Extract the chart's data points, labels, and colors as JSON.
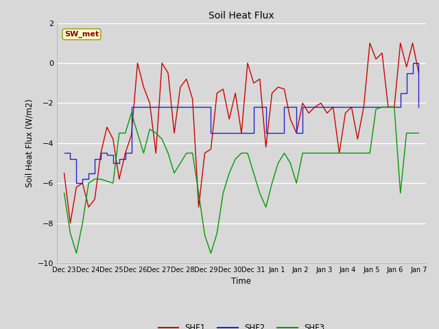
{
  "title": "Soil Heat Flux",
  "xlabel": "Time",
  "ylabel": "Soil Heat Flux (W/m2)",
  "ylim": [
    -10,
    2
  ],
  "yticks": [
    -10,
    -8,
    -6,
    -4,
    -2,
    0,
    2
  ],
  "bg_color": "#d8d8d8",
  "plot_bg_color": "#d8d8d8",
  "annotation_text": "SW_met",
  "annotation_bg": "#ffffcc",
  "annotation_fg": "#880000",
  "colors": {
    "SHF1": "#cc0000",
    "SHF2": "#2222cc",
    "SHF3": "#009900"
  },
  "x_labels": [
    "Dec 23",
    "Dec 24",
    "Dec 25",
    "Dec 26",
    "Dec 27",
    "Dec 28",
    "Dec 29",
    "Dec 30",
    "Dec 31",
    "Jan 1",
    "Jan 2",
    "Jan 3",
    "Jan 4",
    "Jan 5",
    "Jan 6",
    "Jan 7"
  ],
  "SHF1": [
    -5.5,
    -8.0,
    -6.2,
    -6.0,
    -7.2,
    -6.8,
    -4.5,
    -3.2,
    -3.8,
    -5.8,
    -4.5,
    -3.6,
    0.0,
    -1.2,
    -2.0,
    -4.5,
    0.0,
    -0.5,
    -3.5,
    -1.2,
    -0.8,
    -1.8,
    -7.2,
    -4.5,
    -4.3,
    -1.5,
    -1.3,
    -2.8,
    -1.5,
    -3.5,
    0.0,
    -1.0,
    -0.8,
    -4.2,
    -1.5,
    -1.2,
    -1.3,
    -2.8,
    -3.5,
    -2.0,
    -2.5,
    -2.2,
    -2.0,
    -2.5,
    -2.2,
    -4.5,
    -2.5,
    -2.2,
    -3.8,
    -2.2,
    1.0,
    0.2,
    0.5,
    -2.2,
    -2.2,
    1.0,
    -0.2,
    1.0,
    -0.5
  ],
  "SHF2": [
    -4.5,
    -4.8,
    -6.0,
    -5.8,
    -5.5,
    -4.8,
    -4.5,
    -4.6,
    -5.0,
    -4.8,
    -4.5,
    -2.2,
    -2.2,
    -2.2,
    -2.2,
    -2.2,
    -2.2,
    -2.2,
    -2.2,
    -2.2,
    -2.2,
    -2.2,
    -2.2,
    -2.2,
    -3.5,
    -3.5,
    -3.5,
    -3.5,
    -3.5,
    -3.5,
    -3.5,
    -2.2,
    -2.2,
    -3.5,
    -3.5,
    -3.5,
    -2.2,
    -2.2,
    -3.5,
    -2.2,
    -2.2,
    -2.2,
    -2.2,
    -2.2,
    -2.2,
    -2.2,
    -2.2,
    -2.2,
    -2.2,
    -2.2,
    -2.2,
    -2.2,
    -2.2,
    -2.2,
    -2.2,
    -1.5,
    -0.5,
    0.0,
    -2.2
  ],
  "SHF3": [
    -6.5,
    -8.5,
    -9.5,
    -8.0,
    -6.0,
    -5.8,
    -5.8,
    -5.9,
    -6.0,
    -3.5,
    -3.5,
    -2.5,
    -3.5,
    -4.5,
    -3.3,
    -3.5,
    -3.8,
    -4.5,
    -5.5,
    -5.0,
    -4.5,
    -4.5,
    -6.5,
    -8.6,
    -9.5,
    -8.5,
    -6.5,
    -5.5,
    -4.8,
    -4.5,
    -4.5,
    -5.5,
    -6.5,
    -7.2,
    -6.0,
    -5.0,
    -4.5,
    -5.0,
    -6.0,
    -4.5,
    -4.5,
    -4.5,
    -4.5,
    -4.5,
    -4.5,
    -4.5,
    -4.5,
    -4.5,
    -4.5,
    -4.5,
    -4.5,
    -2.3,
    -2.2,
    -2.2,
    -2.2,
    -6.5,
    -3.5,
    -3.5,
    -3.5
  ]
}
